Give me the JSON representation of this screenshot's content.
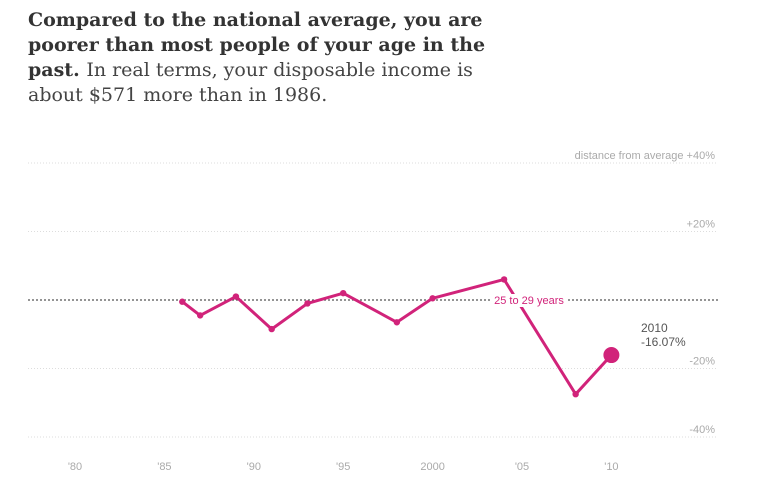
{
  "headline": {
    "bold": "Compared to the national average, you are poorer than most people of your age in the past.",
    "rest": "In real terms, your disposable income is about $571 more than in 1986."
  },
  "colors": {
    "series": "#d1237a",
    "grid": "#dddddd",
    "zero": "#555555",
    "tick": "#aaaaaa"
  },
  "chart_data": {
    "type": "line",
    "title": "",
    "xlabel": "",
    "ylabel": "distance from average",
    "xlim": [
      1976,
      2017
    ],
    "ylim": [
      -40,
      40
    ],
    "grid": true,
    "x_ticks": [
      {
        "v": 1980,
        "label": "'80"
      },
      {
        "v": 1985,
        "label": "'85"
      },
      {
        "v": 1990,
        "label": "'90"
      },
      {
        "v": 1995,
        "label": "'95"
      },
      {
        "v": 2000,
        "label": "2000"
      },
      {
        "v": 2005,
        "label": "'05"
      },
      {
        "v": 2010,
        "label": "'10"
      }
    ],
    "y_ticks": [
      {
        "v": 40,
        "label": "distance from average +40%"
      },
      {
        "v": 20,
        "label": "+20%"
      },
      {
        "v": -20,
        "label": "-20%"
      },
      {
        "v": -40,
        "label": "-40%"
      }
    ],
    "series": [
      {
        "name": "25 to 29 years",
        "x": [
          1986,
          1987,
          1989,
          1991,
          1993,
          1995,
          1998,
          2000,
          2004,
          2008,
          2010
        ],
        "y": [
          -0.5,
          -4.5,
          1,
          -8.5,
          -1,
          2,
          -6.5,
          0.5,
          6,
          -27.5,
          -16.07
        ]
      }
    ],
    "annotation": {
      "year": "2010",
      "value": "-16.07%"
    }
  }
}
